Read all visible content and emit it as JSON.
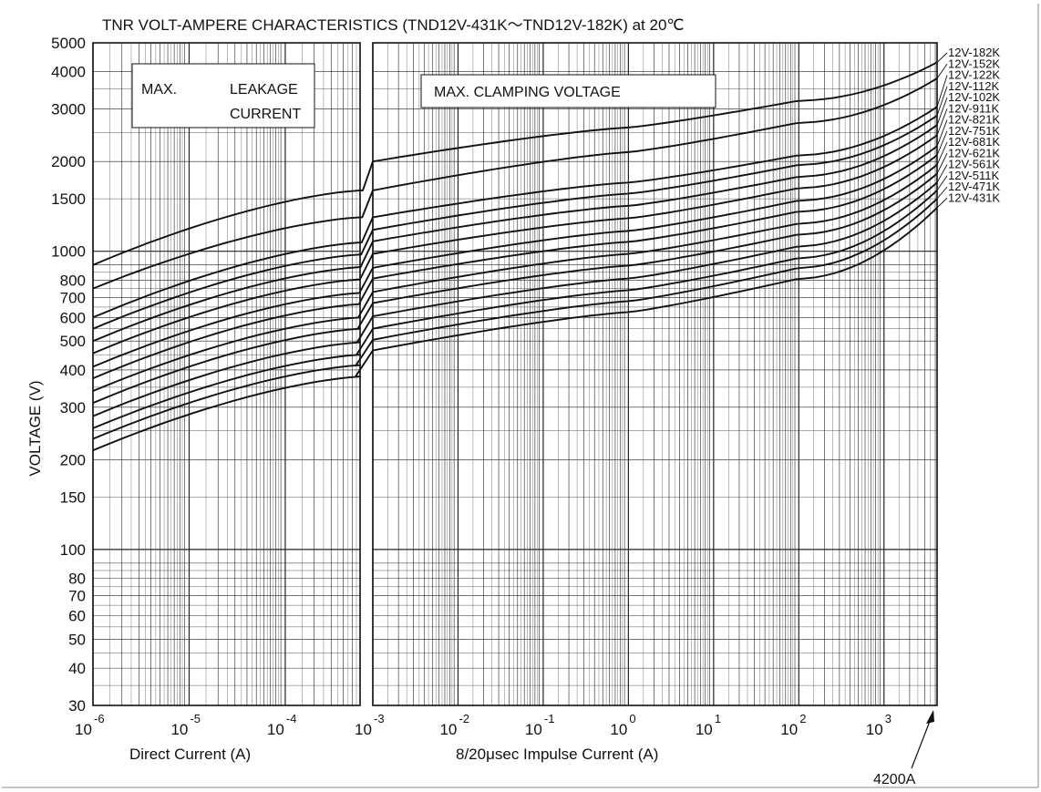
{
  "chart_data": {
    "type": "line",
    "title": "TNR  VOLT-AMPERE  CHARACTERISTICS  (TND12V-431K〜TND12V-182K)  at 20℃",
    "ylabel": "VOLTAGE  (V)",
    "y_scale": "log",
    "ylim": [
      30,
      5000
    ],
    "y_ticks": [
      5000,
      4000,
      3000,
      2000,
      1500,
      1000,
      800,
      700,
      600,
      500,
      400,
      300,
      200,
      150,
      100,
      80,
      70,
      60,
      50,
      40,
      30
    ],
    "grid": true,
    "panels": [
      {
        "xlabel": "Direct  Current  (A)",
        "x_scale": "log",
        "xlim": [
          1e-06,
          0.0006
        ],
        "x_ticks": [
          "10^-6",
          "10^-5",
          "10^-4"
        ],
        "annotation": [
          "MAX.",
          "LEAKAGE",
          "CURRENT"
        ]
      },
      {
        "xlabel": "8/20μsec  Impulse  Current  (A)",
        "x_scale": "log",
        "xlim": [
          0.001,
          4200
        ],
        "x_ticks": [
          "10^-3",
          "10^-2",
          "10^-1",
          "10^0",
          "10^1",
          "10^2",
          "10^3"
        ],
        "annotation": [
          "MAX.  CLAMPING  VOLTAGE"
        ]
      }
    ],
    "x_ticks_display": [
      {
        "base": "10",
        "exp": "-6"
      },
      {
        "base": "10",
        "exp": "-5"
      },
      {
        "base": "10",
        "exp": "-4"
      },
      {
        "base": "10",
        "exp": "-3"
      },
      {
        "base": "10",
        "exp": "-2"
      },
      {
        "base": "10",
        "exp": "-1"
      },
      {
        "base": "10",
        "exp": "0"
      },
      {
        "base": "10",
        "exp": "1"
      },
      {
        "base": "10",
        "exp": "2"
      },
      {
        "base": "10",
        "exp": "3"
      }
    ],
    "series": [
      {
        "name": "12V-182K",
        "leakage": [
          [
            1e-06,
            900
          ],
          [
            0.0006,
            1600
          ]
        ],
        "clamping": [
          [
            0.001,
            2000
          ],
          [
            1,
            2600
          ],
          [
            100,
            3200
          ],
          [
            4200,
            4300
          ]
        ]
      },
      {
        "name": "12V-152K",
        "leakage": [
          [
            1e-06,
            750
          ],
          [
            0.0006,
            1300
          ]
        ],
        "clamping": [
          [
            0.001,
            1600
          ],
          [
            1,
            2150
          ],
          [
            100,
            2700
          ],
          [
            4200,
            3800
          ]
        ]
      },
      {
        "name": "12V-122K",
        "leakage": [
          [
            1e-06,
            600
          ],
          [
            0.0006,
            1070
          ]
        ],
        "clamping": [
          [
            0.001,
            1300
          ],
          [
            1,
            1700
          ],
          [
            100,
            2100
          ],
          [
            4200,
            3050
          ]
        ]
      },
      {
        "name": "12V-112K",
        "leakage": [
          [
            1e-06,
            550
          ],
          [
            0.0006,
            975
          ]
        ],
        "clamping": [
          [
            0.001,
            1180
          ],
          [
            1,
            1560
          ],
          [
            100,
            1950
          ],
          [
            4200,
            2850
          ]
        ]
      },
      {
        "name": "12V-102K",
        "leakage": [
          [
            1e-06,
            500
          ],
          [
            0.0006,
            885
          ]
        ],
        "clamping": [
          [
            0.001,
            1080
          ],
          [
            1,
            1420
          ],
          [
            100,
            1780
          ],
          [
            4200,
            2650
          ]
        ]
      },
      {
        "name": "12V-911K",
        "leakage": [
          [
            1e-06,
            455
          ],
          [
            0.0006,
            805
          ]
        ],
        "clamping": [
          [
            0.001,
            980
          ],
          [
            1,
            1290
          ],
          [
            100,
            1630
          ],
          [
            4200,
            2450
          ]
        ]
      },
      {
        "name": "12V-821K",
        "leakage": [
          [
            1e-06,
            410
          ],
          [
            0.0006,
            725
          ]
        ],
        "clamping": [
          [
            0.001,
            880
          ],
          [
            1,
            1170
          ],
          [
            100,
            1480
          ],
          [
            4200,
            2250
          ]
        ]
      },
      {
        "name": "12V-751K",
        "leakage": [
          [
            1e-06,
            375
          ],
          [
            0.0006,
            665
          ]
        ],
        "clamping": [
          [
            0.001,
            810
          ],
          [
            1,
            1075
          ],
          [
            100,
            1360
          ],
          [
            4200,
            2100
          ]
        ]
      },
      {
        "name": "12V-681K",
        "leakage": [
          [
            1e-06,
            340
          ],
          [
            0.0006,
            600
          ]
        ],
        "clamping": [
          [
            0.001,
            730
          ],
          [
            1,
            980
          ],
          [
            100,
            1240
          ],
          [
            4200,
            1950
          ]
        ]
      },
      {
        "name": "12V-621K",
        "leakage": [
          [
            1e-06,
            310
          ],
          [
            0.0006,
            550
          ]
        ],
        "clamping": [
          [
            0.001,
            670
          ],
          [
            1,
            895
          ],
          [
            100,
            1140
          ],
          [
            4200,
            1820
          ]
        ]
      },
      {
        "name": "12V-561K",
        "leakage": [
          [
            1e-06,
            280
          ],
          [
            0.0006,
            495
          ]
        ],
        "clamping": [
          [
            0.001,
            605
          ],
          [
            1,
            810
          ],
          [
            100,
            1040
          ],
          [
            4200,
            1700
          ]
        ]
      },
      {
        "name": "12V-511K",
        "leakage": [
          [
            1e-06,
            255
          ],
          [
            0.0006,
            450
          ]
        ],
        "clamping": [
          [
            0.001,
            550
          ],
          [
            1,
            740
          ],
          [
            100,
            950
          ],
          [
            4200,
            1600
          ]
        ]
      },
      {
        "name": "12V-471K",
        "leakage": [
          [
            1e-06,
            235
          ],
          [
            0.0006,
            415
          ]
        ],
        "clamping": [
          [
            0.001,
            505
          ],
          [
            1,
            680
          ],
          [
            100,
            880
          ],
          [
            4200,
            1500
          ]
        ]
      },
      {
        "name": "12V-431K",
        "leakage": [
          [
            1e-06,
            215
          ],
          [
            0.0006,
            380
          ]
        ],
        "clamping": [
          [
            0.001,
            465
          ],
          [
            1,
            625
          ],
          [
            100,
            810
          ],
          [
            4200,
            1400
          ]
        ]
      }
    ],
    "note": "4200A"
  }
}
